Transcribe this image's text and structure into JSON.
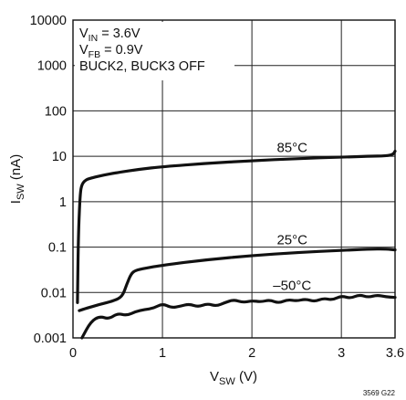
{
  "chart_data": {
    "type": "line",
    "x_axis": {
      "label_main": "V",
      "label_sub": "SW",
      "label_tail": " (V)",
      "range": [
        0,
        3.6
      ],
      "ticks": [
        0,
        1,
        2,
        3,
        3.6
      ],
      "tick_labels": [
        "0",
        "1",
        "2",
        "3",
        "3.6"
      ]
    },
    "y_axis": {
      "label_main": "I",
      "label_sub": "SW",
      "label_tail": " (nA)",
      "scale": "log",
      "range": [
        0.001,
        10000
      ],
      "ticks": [
        0.001,
        0.01,
        0.1,
        1,
        10,
        100,
        1000,
        10000
      ],
      "tick_labels": [
        "0.001",
        "0.01",
        "0.1",
        "1",
        "10",
        "100",
        "1000",
        "10000"
      ]
    },
    "grid": true,
    "conditions": [
      {
        "main": "V",
        "sub": "IN",
        "tail": " = 3.6V"
      },
      {
        "main": "V",
        "sub": "FB",
        "tail": " = 0.9V"
      },
      {
        "main": "BUCK2, BUCK3 OFF",
        "sub": "",
        "tail": ""
      }
    ],
    "series": [
      {
        "name": "85°C",
        "x": [
          0.05,
          0.06,
          0.08,
          0.1,
          0.15,
          0.2,
          0.3,
          0.5,
          0.75,
          1.0,
          1.5,
          2.0,
          2.5,
          3.0,
          3.3,
          3.5,
          3.58,
          3.6
        ],
        "y": [
          0.006,
          0.2,
          1.5,
          2.5,
          3.1,
          3.3,
          3.7,
          4.4,
          5.2,
          5.9,
          7.0,
          8.0,
          8.9,
          9.6,
          10.0,
          10.2,
          11.0,
          13.0
        ]
      },
      {
        "name": "25°C",
        "x": [
          0.07,
          0.15,
          0.3,
          0.45,
          0.55,
          0.6,
          0.65,
          0.7,
          0.8,
          1.0,
          1.5,
          2.0,
          2.5,
          3.0,
          3.3,
          3.5,
          3.6
        ],
        "y": [
          0.004,
          0.0045,
          0.0055,
          0.0065,
          0.008,
          0.015,
          0.026,
          0.031,
          0.034,
          0.04,
          0.053,
          0.065,
          0.076,
          0.085,
          0.09,
          0.091,
          0.087
        ]
      },
      {
        "name": "–50°C",
        "x": [
          0.1,
          0.2,
          0.3,
          0.4,
          0.5,
          0.6,
          0.7,
          0.8,
          0.9,
          1.0,
          1.1,
          1.2,
          1.3,
          1.4,
          1.5,
          1.6,
          1.7,
          1.8,
          1.9,
          2.0,
          2.1,
          2.2,
          2.3,
          2.4,
          2.5,
          2.6,
          2.7,
          2.8,
          2.9,
          3.0,
          3.1,
          3.2,
          3.3,
          3.4,
          3.5,
          3.6
        ],
        "y": [
          0.001,
          0.0023,
          0.003,
          0.0026,
          0.0035,
          0.0031,
          0.0038,
          0.0042,
          0.0045,
          0.0057,
          0.0046,
          0.005,
          0.0056,
          0.0048,
          0.0057,
          0.005,
          0.006,
          0.007,
          0.006,
          0.0066,
          0.0062,
          0.0069,
          0.0058,
          0.007,
          0.0065,
          0.0072,
          0.0063,
          0.0075,
          0.0068,
          0.0085,
          0.0074,
          0.009,
          0.0078,
          0.0088,
          0.008,
          0.0078
        ]
      }
    ],
    "curve_labels": [
      {
        "series": 0,
        "text": "85°C",
        "x": 2.45,
        "y": 12.5
      },
      {
        "series": 1,
        "text": "25°C",
        "x": 2.45,
        "y": 0.115
      },
      {
        "series": 2,
        "text": "–50°C",
        "x": 2.45,
        "y": 0.0115
      }
    ]
  },
  "figure_id": "3569 G22"
}
